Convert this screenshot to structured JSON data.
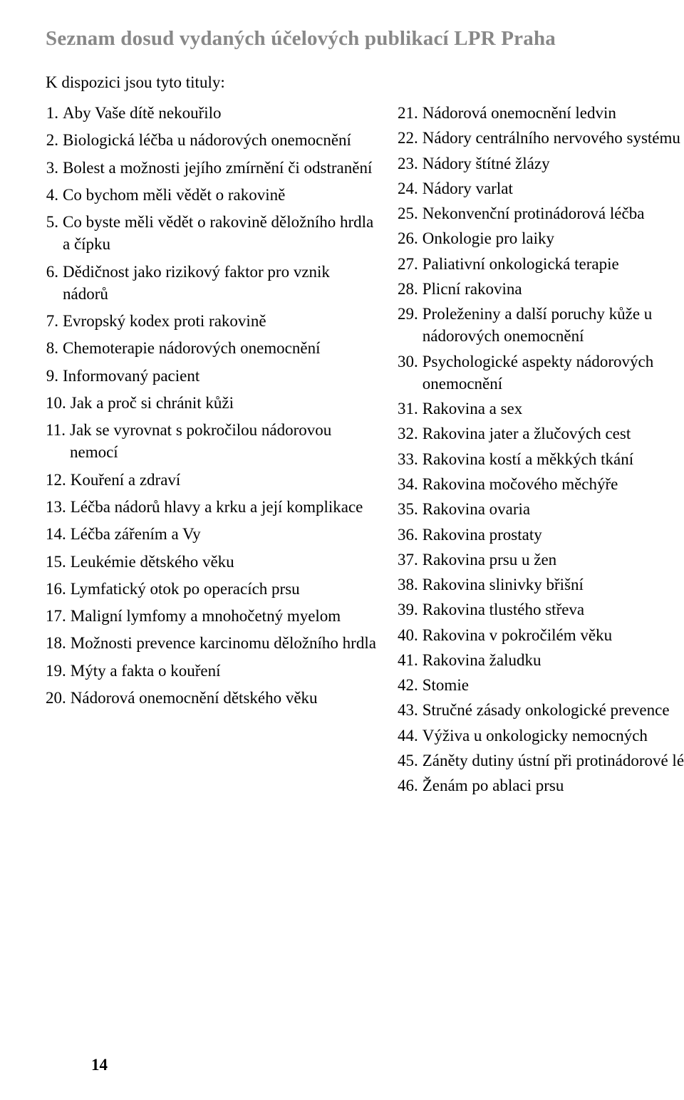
{
  "colors": {
    "heading": "#888888",
    "text": "#000000",
    "background": "#ffffff"
  },
  "typography": {
    "heading_fontsize": 29,
    "body_fontsize": 23,
    "heading_weight": "bold",
    "font_family": "Georgia, Times New Roman, serif"
  },
  "heading": "Seznam dosud vydaných účelových publikací LPR Praha",
  "subtitle": "K dispozici jsou tyto tituly:",
  "page_number": "14",
  "left_items": [
    {
      "n": "1.",
      "t": "Aby Vaše dítě nekouřilo"
    },
    {
      "n": "2.",
      "t": "Biologická léčba u nádorových onemocnění"
    },
    {
      "n": "3.",
      "t": "Bolest a možnosti jejího zmírnění či odstranění"
    },
    {
      "n": "4.",
      "t": "Co bychom měli vědět o rakovině"
    },
    {
      "n": "5.",
      "t": "Co byste měli vědět o rakovině děložního hrdla a čípku"
    },
    {
      "n": "6.",
      "t": "Dědičnost jako rizikový faktor pro vznik nádorů"
    },
    {
      "n": "7.",
      "t": "Evropský kodex proti rakovině"
    },
    {
      "n": "8.",
      "t": "Chemoterapie nádorových onemocnění"
    },
    {
      "n": "9.",
      "t": "Informovaný pacient"
    },
    {
      "n": "10.",
      "t": "Jak a proč si chránit kůži"
    },
    {
      "n": "11.",
      "t": "Jak se vyrovnat s pokročilou nádorovou nemocí"
    },
    {
      "n": "12.",
      "t": "Kouření a zdraví"
    },
    {
      "n": "13.",
      "t": "Léčba nádorů hlavy a krku a její komplikace"
    },
    {
      "n": "14.",
      "t": "Léčba zářením a Vy"
    },
    {
      "n": "15.",
      "t": "Leukémie dětského věku"
    },
    {
      "n": "16.",
      "t": "Lymfatický otok po operacích prsu"
    },
    {
      "n": "17.",
      "t": "Maligní lymfomy a mnohočetný myelom"
    },
    {
      "n": "18.",
      "t": "Možnosti prevence karcinomu děložního hrdla"
    },
    {
      "n": "19.",
      "t": "Mýty a fakta o kouření"
    },
    {
      "n": "20.",
      "t": "Nádorová onemocnění dětského věku"
    }
  ],
  "right_items": [
    {
      "n": "21.",
      "t": "Nádorová onemocnění ledvin"
    },
    {
      "n": "22.",
      "t": "Nádory centrálního nervového systému"
    },
    {
      "n": "23.",
      "t": "Nádory štítné žlázy"
    },
    {
      "n": "24.",
      "t": "Nádory varlat"
    },
    {
      "n": "25.",
      "t": "Nekonvenční protinádorová léčba"
    },
    {
      "n": "26.",
      "t": "Onkologie pro laiky"
    },
    {
      "n": "27.",
      "t": "Paliativní onkologická terapie"
    },
    {
      "n": "28.",
      "t": "Plicní rakovina"
    },
    {
      "n": "29.",
      "t": "Proleženiny a další poruchy kůže u nádorových onemocnění"
    },
    {
      "n": "30.",
      "t": "Psychologické aspekty nádorových onemocnění"
    },
    {
      "n": "31.",
      "t": "Rakovina a sex"
    },
    {
      "n": "32.",
      "t": "Rakovina jater a žlučových cest"
    },
    {
      "n": "33.",
      "t": "Rakovina kostí a měkkých tkání"
    },
    {
      "n": "34.",
      "t": "Rakovina močového měchýře"
    },
    {
      "n": "35.",
      "t": "Rakovina ovaria"
    },
    {
      "n": "36.",
      "t": "Rakovina prostaty"
    },
    {
      "n": "37.",
      "t": "Rakovina prsu u žen"
    },
    {
      "n": "38.",
      "t": "Rakovina slinivky břišní"
    },
    {
      "n": "39.",
      "t": "Rakovina tlustého střeva"
    },
    {
      "n": "40.",
      "t": "Rakovina v pokročilém věku"
    },
    {
      "n": "41.",
      "t": "Rakovina žaludku"
    },
    {
      "n": "42.",
      "t": "Stomie"
    },
    {
      "n": "43.",
      "t": "Stručné zásady onkologické prevence"
    },
    {
      "n": "44.",
      "t": "Výživa u onkologicky nemocných"
    },
    {
      "n": "45.",
      "t": "Záněty dutiny ústní při protinádorové léčbě"
    },
    {
      "n": "46.",
      "t": "Ženám po ablaci prsu"
    }
  ]
}
